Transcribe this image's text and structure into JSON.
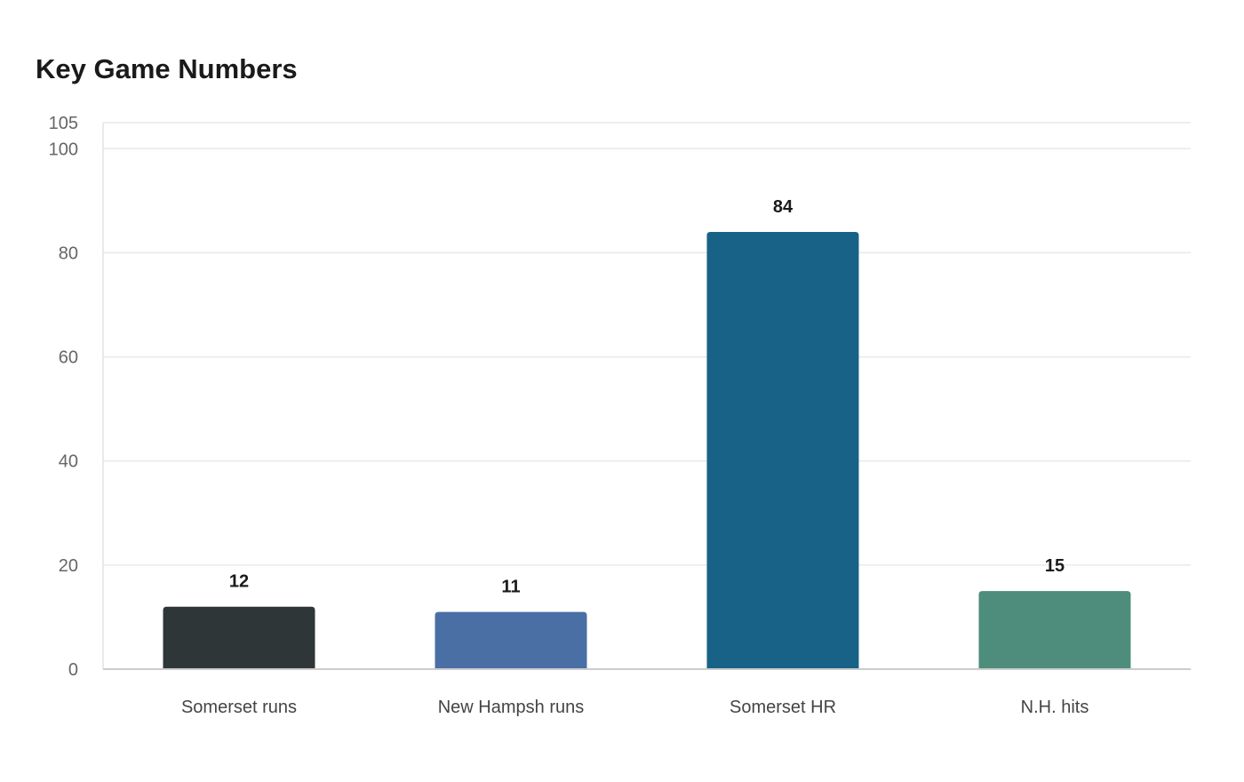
{
  "chart_data": {
    "type": "bar",
    "title": "Key Game Numbers",
    "categories": [
      "Somerset runs",
      "New Hampsh runs",
      "Somerset HR",
      "N.H. hits"
    ],
    "values": [
      12,
      11,
      84,
      15
    ],
    "colors": [
      "#2e3638",
      "#4a6fa5",
      "#186288",
      "#4e8d7b"
    ],
    "yticks": [
      0,
      20,
      40,
      60,
      80,
      100,
      105
    ],
    "ylim": [
      0,
      105
    ],
    "grid": true,
    "xlabel": "",
    "ylabel": ""
  }
}
